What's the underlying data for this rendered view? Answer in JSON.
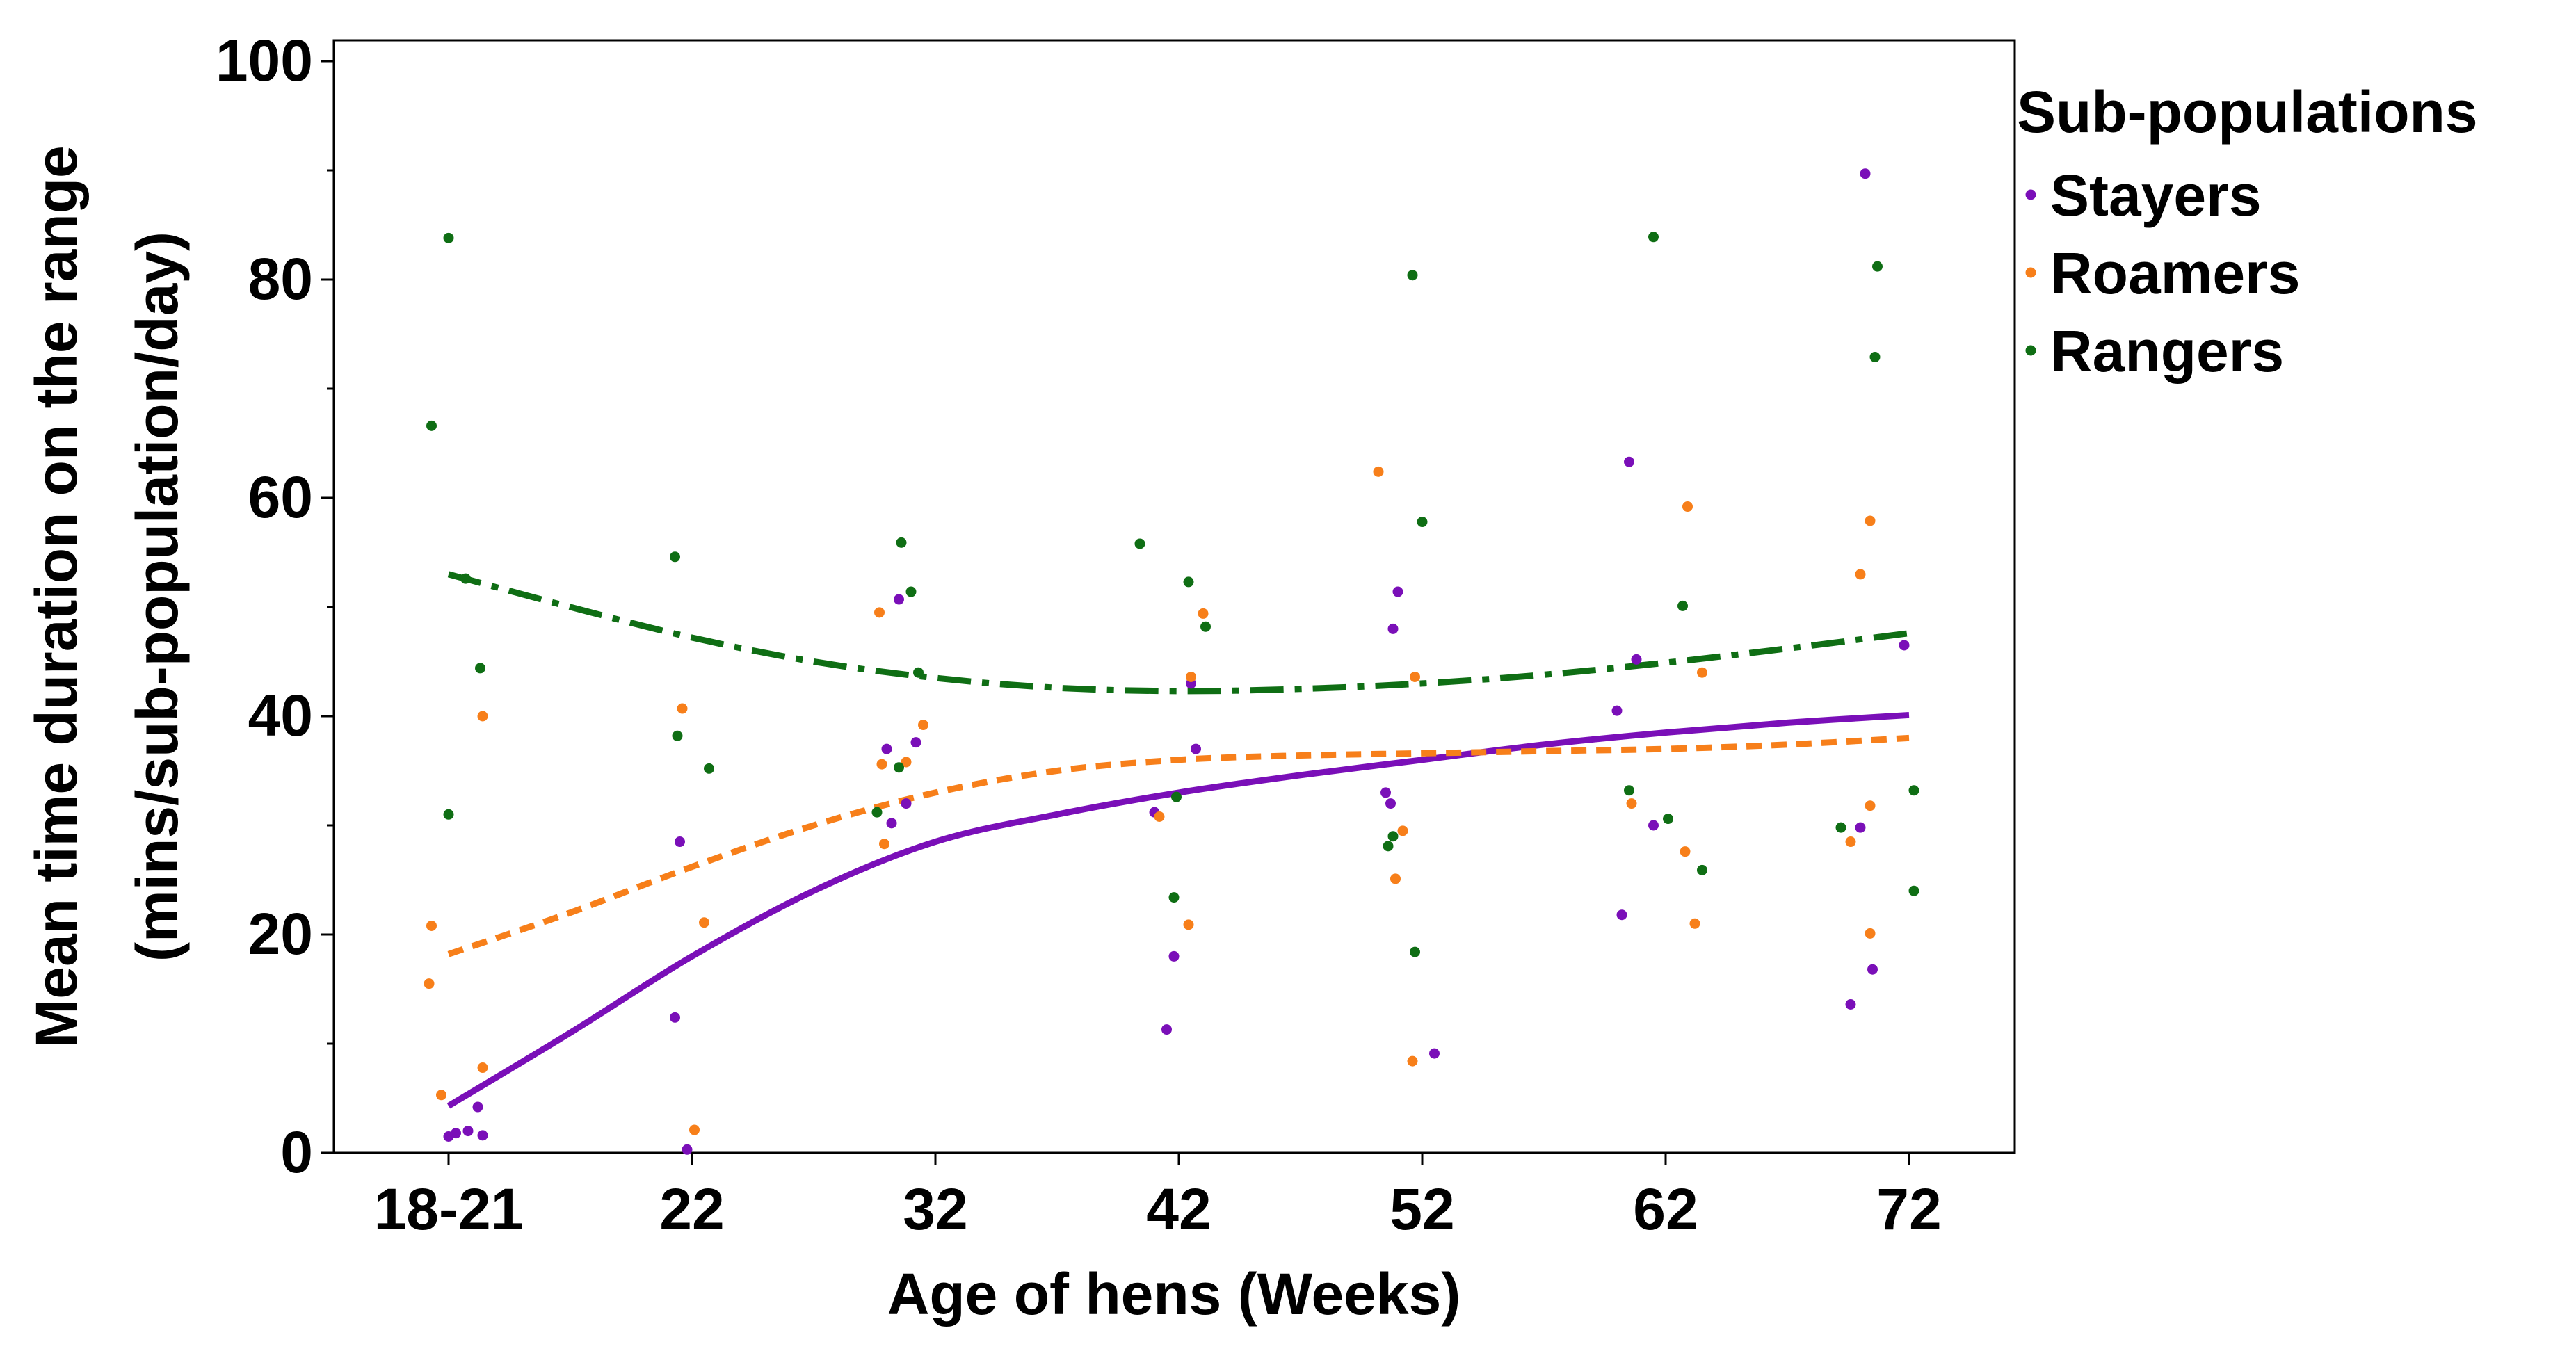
{
  "chart_data": {
    "type": "scatter",
    "title": "",
    "xlabel": "Age of hens (Weeks)",
    "ylabel_line1": "Mean time duration on the range",
    "ylabel_line2": "(mins/sub-population/day)",
    "categories": [
      "18-21",
      "22",
      "32",
      "42",
      "52",
      "62",
      "72"
    ],
    "ylim": [
      0,
      100
    ],
    "yticks": [
      0,
      20,
      40,
      60,
      80,
      100
    ],
    "legend": {
      "title": "Sub-populations",
      "position": "right"
    },
    "series": [
      {
        "name": "Stayers",
        "color": "#7a0fb8",
        "line_style": "solid",
        "points": [
          {
            "x": 0.0,
            "y": 1.5
          },
          {
            "x": 0.03,
            "y": 1.8
          },
          {
            "x": 0.08,
            "y": 2.0
          },
          {
            "x": 0.12,
            "y": 4.2
          },
          {
            "x": 0.14,
            "y": 1.6
          },
          {
            "x": 0.93,
            "y": 12.4
          },
          {
            "x": 0.95,
            "y": 28.5
          },
          {
            "x": 0.98,
            "y": 0.3
          },
          {
            "x": 1.85,
            "y": 50.7
          },
          {
            "x": 1.8,
            "y": 37.0
          },
          {
            "x": 1.82,
            "y": 30.2
          },
          {
            "x": 1.88,
            "y": 32.0
          },
          {
            "x": 1.92,
            "y": 37.6
          },
          {
            "x": 2.9,
            "y": 31.2
          },
          {
            "x": 2.95,
            "y": 11.3
          },
          {
            "x": 2.98,
            "y": 18.0
          },
          {
            "x": 3.05,
            "y": 43.0
          },
          {
            "x": 3.07,
            "y": 37.0
          },
          {
            "x": 3.9,
            "y": 51.4
          },
          {
            "x": 3.88,
            "y": 48.0
          },
          {
            "x": 3.85,
            "y": 33.0
          },
          {
            "x": 3.87,
            "y": 32.0
          },
          {
            "x": 4.05,
            "y": 9.1
          },
          {
            "x": 4.85,
            "y": 63.3
          },
          {
            "x": 4.88,
            "y": 45.2
          },
          {
            "x": 4.82,
            "y": 21.8
          },
          {
            "x": 4.8,
            "y": 40.5
          },
          {
            "x": 4.95,
            "y": 30.0
          },
          {
            "x": 5.82,
            "y": 89.7
          },
          {
            "x": 5.85,
            "y": 16.8
          },
          {
            "x": 5.76,
            "y": 13.6
          },
          {
            "x": 5.8,
            "y": 29.8
          },
          {
            "x": 5.98,
            "y": 46.5
          }
        ],
        "trend": [
          {
            "x": 0.0,
            "y": 4.3
          },
          {
            "x": 0.5,
            "y": 11.0
          },
          {
            "x": 1.0,
            "y": 18.0
          },
          {
            "x": 1.5,
            "y": 24.0
          },
          {
            "x": 2.0,
            "y": 28.5
          },
          {
            "x": 2.5,
            "y": 31.0
          },
          {
            "x": 3.0,
            "y": 33.0
          },
          {
            "x": 3.5,
            "y": 34.6
          },
          {
            "x": 4.0,
            "y": 36.0
          },
          {
            "x": 4.5,
            "y": 37.4
          },
          {
            "x": 5.0,
            "y": 38.5
          },
          {
            "x": 5.5,
            "y": 39.4
          },
          {
            "x": 6.0,
            "y": 40.1
          }
        ]
      },
      {
        "name": "Roamers",
        "color": "#f77f1a",
        "line_style": "dashed",
        "points": [
          {
            "x": -0.07,
            "y": 20.8
          },
          {
            "x": -0.08,
            "y": 15.5
          },
          {
            "x": -0.03,
            "y": 5.3
          },
          {
            "x": 0.14,
            "y": 40.0
          },
          {
            "x": 0.14,
            "y": 7.8
          },
          {
            "x": 0.96,
            "y": 40.7
          },
          {
            "x": 1.05,
            "y": 21.1
          },
          {
            "x": 1.01,
            "y": 2.1
          },
          {
            "x": 1.77,
            "y": 49.5
          },
          {
            "x": 1.78,
            "y": 35.6
          },
          {
            "x": 1.79,
            "y": 28.3
          },
          {
            "x": 1.88,
            "y": 35.8
          },
          {
            "x": 1.95,
            "y": 39.2
          },
          {
            "x": 2.92,
            "y": 30.8
          },
          {
            "x": 3.04,
            "y": 20.9
          },
          {
            "x": 3.1,
            "y": 49.4
          },
          {
            "x": 3.05,
            "y": 43.6
          },
          {
            "x": 3.82,
            "y": 62.4
          },
          {
            "x": 3.92,
            "y": 29.5
          },
          {
            "x": 3.89,
            "y": 25.1
          },
          {
            "x": 3.96,
            "y": 8.4
          },
          {
            "x": 3.97,
            "y": 43.6
          },
          {
            "x": 5.09,
            "y": 59.2
          },
          {
            "x": 4.86,
            "y": 32.0
          },
          {
            "x": 5.08,
            "y": 27.6
          },
          {
            "x": 5.12,
            "y": 21.0
          },
          {
            "x": 5.15,
            "y": 44.0
          },
          {
            "x": 5.84,
            "y": 57.9
          },
          {
            "x": 5.8,
            "y": 53.0
          },
          {
            "x": 5.76,
            "y": 28.5
          },
          {
            "x": 5.84,
            "y": 20.1
          },
          {
            "x": 5.84,
            "y": 31.8
          }
        ],
        "trend": [
          {
            "x": 0.0,
            "y": 18.2
          },
          {
            "x": 0.5,
            "y": 22.0
          },
          {
            "x": 1.0,
            "y": 26.2
          },
          {
            "x": 1.5,
            "y": 30.0
          },
          {
            "x": 2.0,
            "y": 33.0
          },
          {
            "x": 2.5,
            "y": 35.0
          },
          {
            "x": 3.0,
            "y": 36.0
          },
          {
            "x": 3.5,
            "y": 36.4
          },
          {
            "x": 4.0,
            "y": 36.6
          },
          {
            "x": 4.5,
            "y": 36.8
          },
          {
            "x": 5.0,
            "y": 37.0
          },
          {
            "x": 5.5,
            "y": 37.4
          },
          {
            "x": 6.0,
            "y": 38.0
          }
        ]
      },
      {
        "name": "Rangers",
        "color": "#0f6e14",
        "line_style": "dash-dot",
        "points": [
          {
            "x": -0.07,
            "y": 66.6
          },
          {
            "x": 0.0,
            "y": 83.8
          },
          {
            "x": 0.0,
            "y": 31.0
          },
          {
            "x": 0.07,
            "y": 52.6
          },
          {
            "x": 0.13,
            "y": 44.4
          },
          {
            "x": 0.93,
            "y": 54.6
          },
          {
            "x": 0.94,
            "y": 38.2
          },
          {
            "x": 1.07,
            "y": 35.2
          },
          {
            "x": 1.76,
            "y": 31.2
          },
          {
            "x": 1.86,
            "y": 55.9
          },
          {
            "x": 1.9,
            "y": 51.4
          },
          {
            "x": 1.93,
            "y": 44.0
          },
          {
            "x": 1.85,
            "y": 35.3
          },
          {
            "x": 2.84,
            "y": 55.8
          },
          {
            "x": 2.98,
            "y": 23.4
          },
          {
            "x": 3.04,
            "y": 52.3
          },
          {
            "x": 3.11,
            "y": 48.2
          },
          {
            "x": 2.99,
            "y": 32.6
          },
          {
            "x": 3.96,
            "y": 80.4
          },
          {
            "x": 4.0,
            "y": 57.8
          },
          {
            "x": 3.86,
            "y": 28.1
          },
          {
            "x": 3.88,
            "y": 29.0
          },
          {
            "x": 3.97,
            "y": 18.4
          },
          {
            "x": 4.95,
            "y": 83.9
          },
          {
            "x": 5.07,
            "y": 50.1
          },
          {
            "x": 4.85,
            "y": 33.2
          },
          {
            "x": 5.01,
            "y": 30.6
          },
          {
            "x": 5.15,
            "y": 25.9
          },
          {
            "x": 5.87,
            "y": 81.2
          },
          {
            "x": 5.86,
            "y": 72.9
          },
          {
            "x": 5.72,
            "y": 29.8
          },
          {
            "x": 6.02,
            "y": 24.0
          },
          {
            "x": 6.02,
            "y": 33.2
          }
        ],
        "trend": [
          {
            "x": 0.0,
            "y": 53.0
          },
          {
            "x": 0.5,
            "y": 50.0
          },
          {
            "x": 1.0,
            "y": 47.2
          },
          {
            "x": 1.5,
            "y": 45.0
          },
          {
            "x": 2.0,
            "y": 43.5
          },
          {
            "x": 2.5,
            "y": 42.6
          },
          {
            "x": 3.0,
            "y": 42.3
          },
          {
            "x": 3.5,
            "y": 42.5
          },
          {
            "x": 4.0,
            "y": 43.0
          },
          {
            "x": 4.5,
            "y": 43.8
          },
          {
            "x": 5.0,
            "y": 44.9
          },
          {
            "x": 5.5,
            "y": 46.2
          },
          {
            "x": 6.0,
            "y": 47.6
          }
        ]
      }
    ]
  }
}
